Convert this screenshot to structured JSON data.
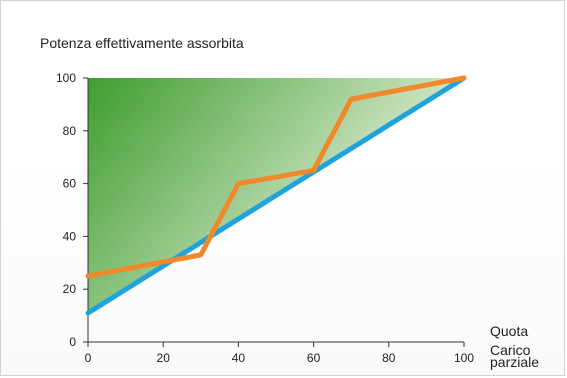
{
  "chart_data": {
    "type": "line",
    "title": "Potenza effettivamente assorbita",
    "xlabel_lines": [
      "Quota",
      "Carico",
      "parziale"
    ],
    "ylabel": "",
    "xlim": [
      0,
      100
    ],
    "ylim": [
      0,
      100
    ],
    "x_ticks": [
      0,
      20,
      40,
      60,
      80,
      100
    ],
    "y_ticks": [
      0,
      20,
      40,
      60,
      80,
      100
    ],
    "grid": false,
    "series": [
      {
        "color": "#f0892b",
        "x": [
          0,
          30,
          40,
          60,
          70,
          100
        ],
        "y": [
          25,
          33,
          60,
          65,
          92,
          100
        ]
      },
      {
        "color": "#1ea3dc",
        "x": [
          0,
          100
        ],
        "y": [
          11,
          100
        ]
      }
    ],
    "shaded_area": {
      "colors": [
        "#3f9d2f",
        "#e6f0dc"
      ],
      "x": [
        0,
        100
      ],
      "y": [
        11,
        100
      ]
    }
  }
}
